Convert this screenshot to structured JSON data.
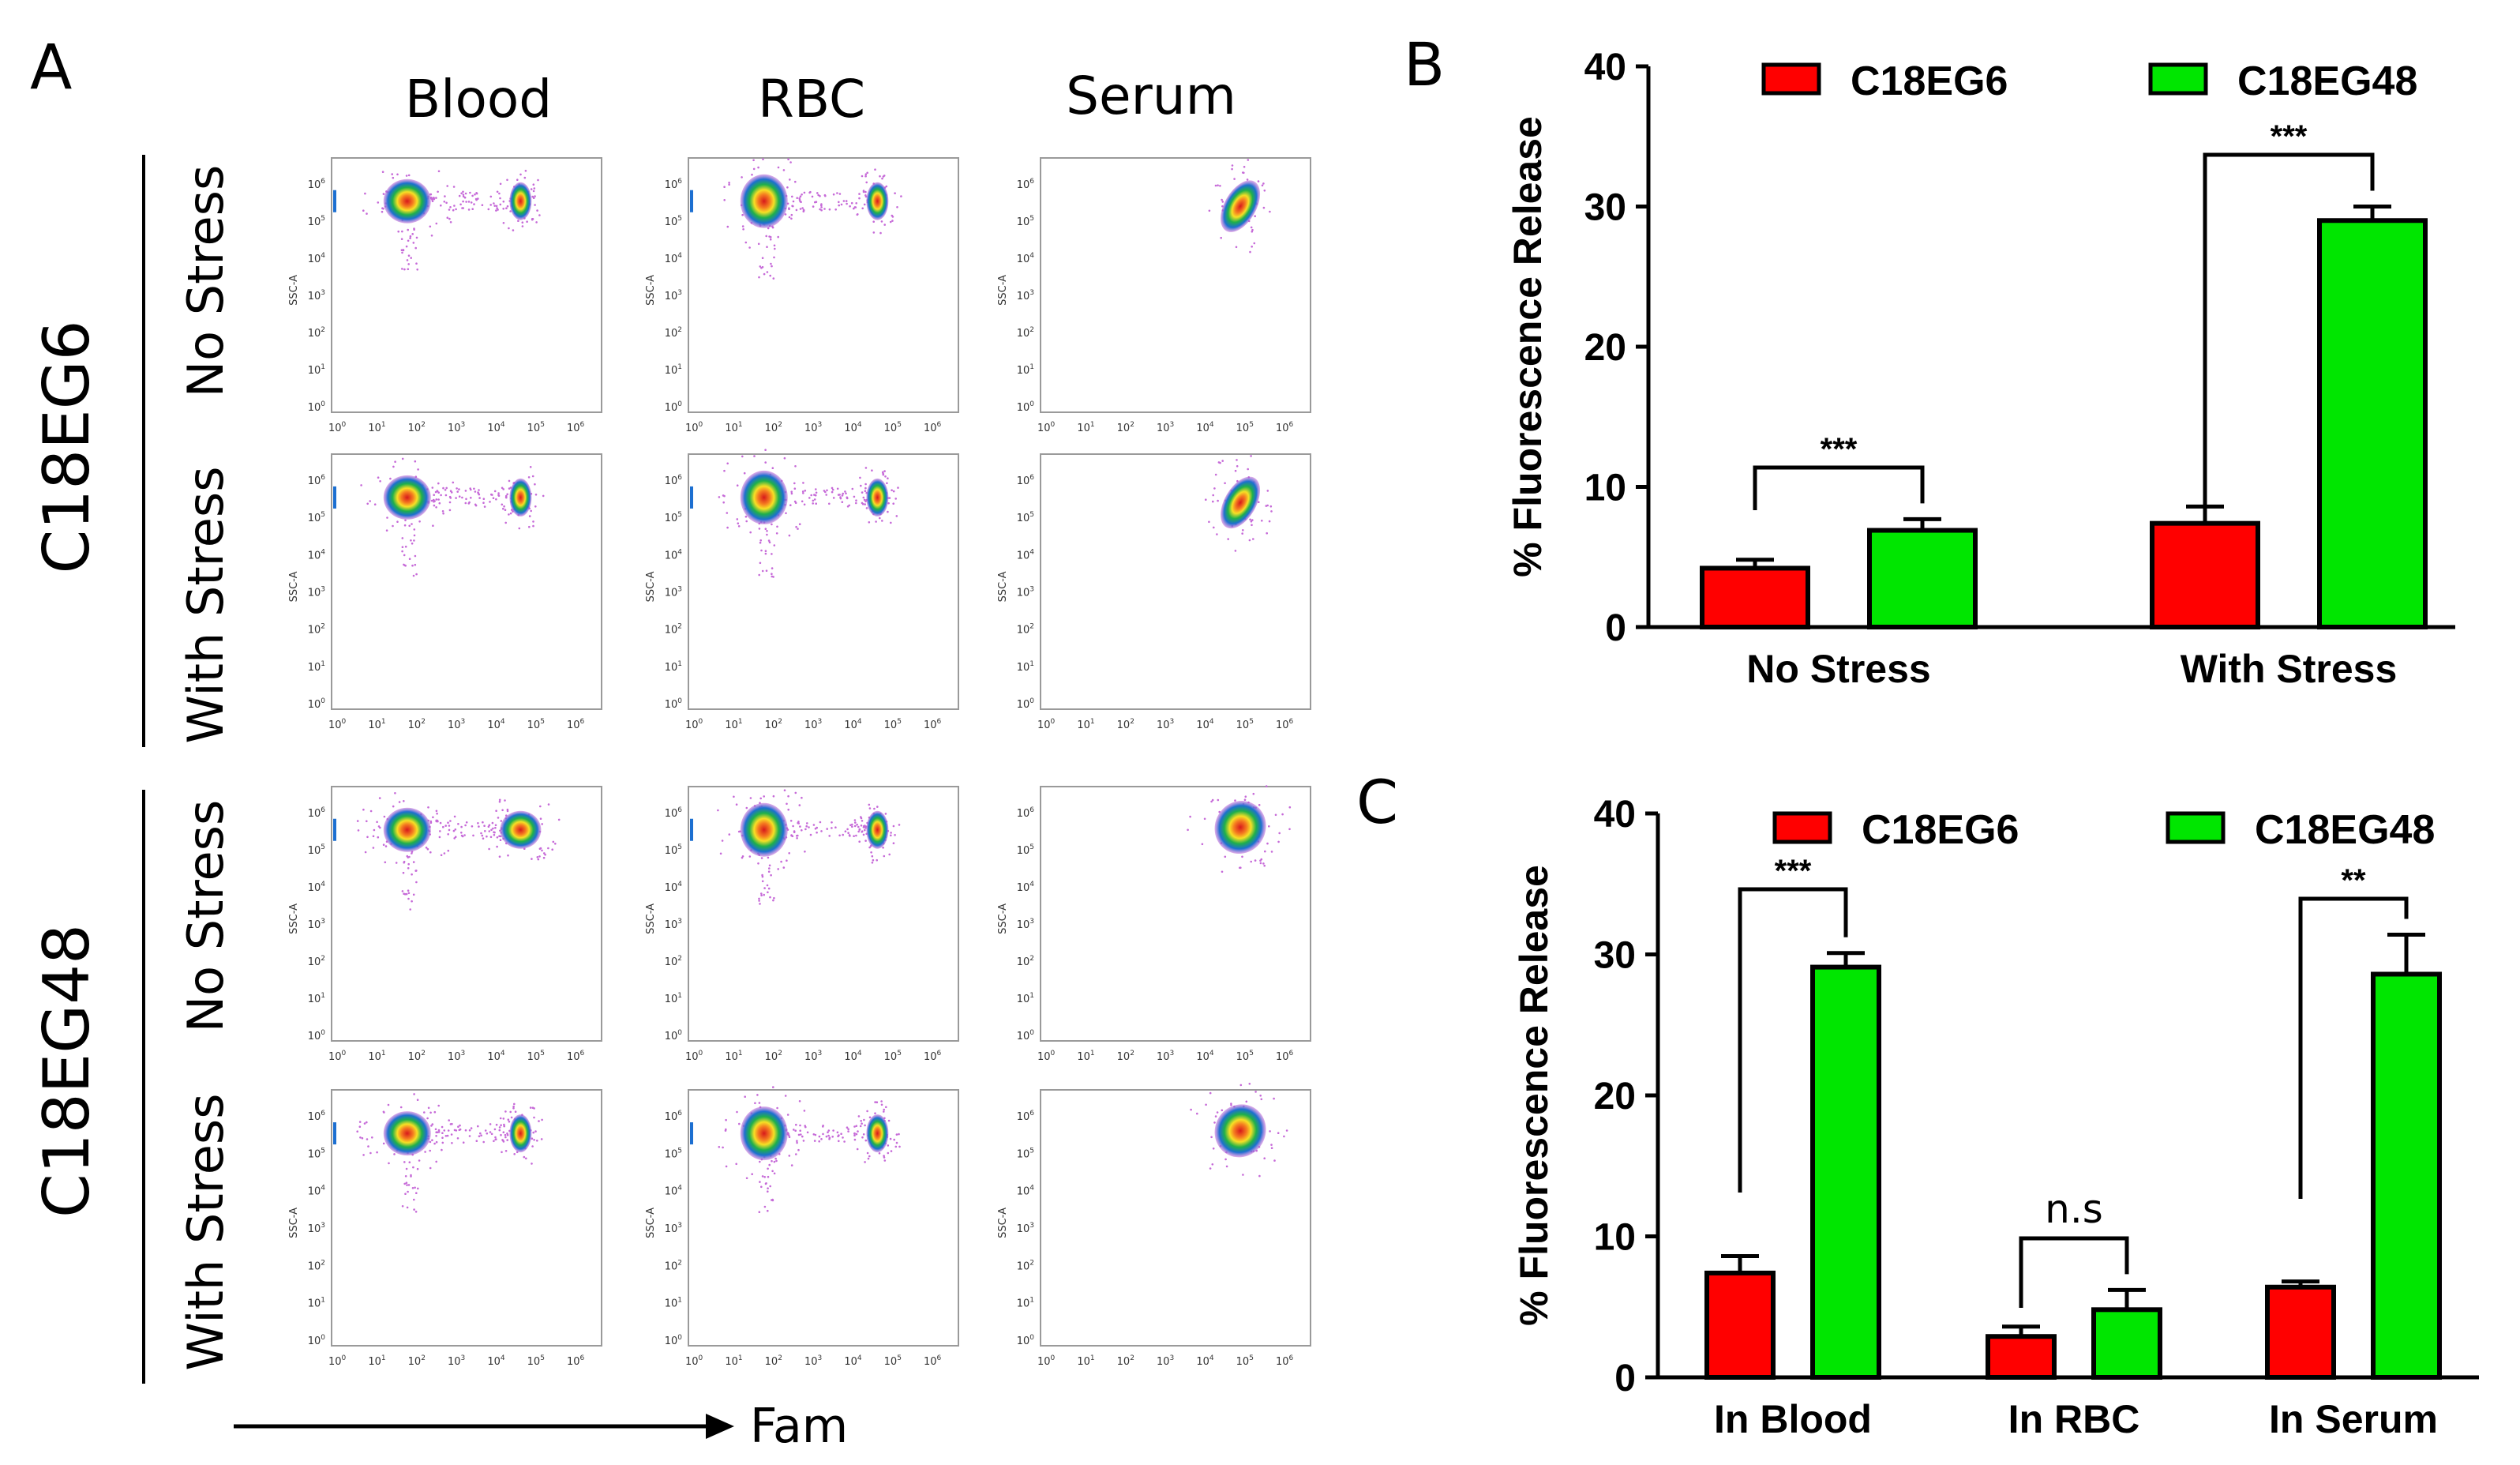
{
  "figure": {
    "panel_labels": {
      "a": "A",
      "b": "B",
      "c": "C"
    },
    "flow": {
      "column_headers": [
        "Blood",
        "RBC",
        "Serum"
      ],
      "row_labels": [
        "No Stress",
        "With Stress",
        "No Stress",
        "With Stress"
      ],
      "group_labels": [
        "C18EG6",
        "C18EG48"
      ],
      "x_axis_label": "Fam",
      "y_axis_label": "SSC-A",
      "tick_base": "10",
      "tick_exponents": [
        "0",
        "1",
        "2",
        "3",
        "4",
        "5",
        "6"
      ],
      "colors": {
        "high": "#d7191c",
        "mid": "#f7e025",
        "low": "#1fb04a",
        "lower": "#1c6fd1",
        "sparse": "#c66ad8"
      }
    }
  },
  "chart_data": [
    {
      "panel": "B",
      "type": "bar",
      "categories": [
        "No Stress",
        "With Stress"
      ],
      "series": [
        {
          "name": "C18EG6",
          "color": "#ff0000",
          "values": [
            4.2,
            7.4
          ],
          "errors": [
            0.6,
            1.2
          ]
        },
        {
          "name": "C18EG48",
          "color": "#00e600",
          "values": [
            6.9,
            29.0
          ],
          "errors": [
            0.8,
            1.0
          ]
        }
      ],
      "ylabel": "% Fluorescence Release",
      "xlabel": "",
      "ylim": [
        0,
        40
      ],
      "yticks": [
        "0",
        "10",
        "20",
        "30",
        "40"
      ],
      "significance": [
        "***",
        "***"
      ],
      "legend_position": "top"
    },
    {
      "panel": "C",
      "type": "bar",
      "categories": [
        "In Blood",
        "In RBC",
        "In Serum"
      ],
      "series": [
        {
          "name": "C18EG6",
          "color": "#ff0000",
          "values": [
            7.4,
            2.9,
            6.4
          ],
          "errors": [
            1.2,
            0.7,
            0.4
          ]
        },
        {
          "name": "C18EG48",
          "color": "#00e600",
          "values": [
            29.1,
            4.8,
            28.6
          ],
          "errors": [
            1.0,
            1.4,
            2.8
          ]
        }
      ],
      "ylabel": "% Fluorescence Release",
      "xlabel": "",
      "ylim": [
        0,
        40
      ],
      "yticks": [
        "0",
        "10",
        "20",
        "30",
        "40"
      ],
      "significance": [
        "***",
        "n.s",
        "**"
      ],
      "legend_position": "top"
    }
  ]
}
